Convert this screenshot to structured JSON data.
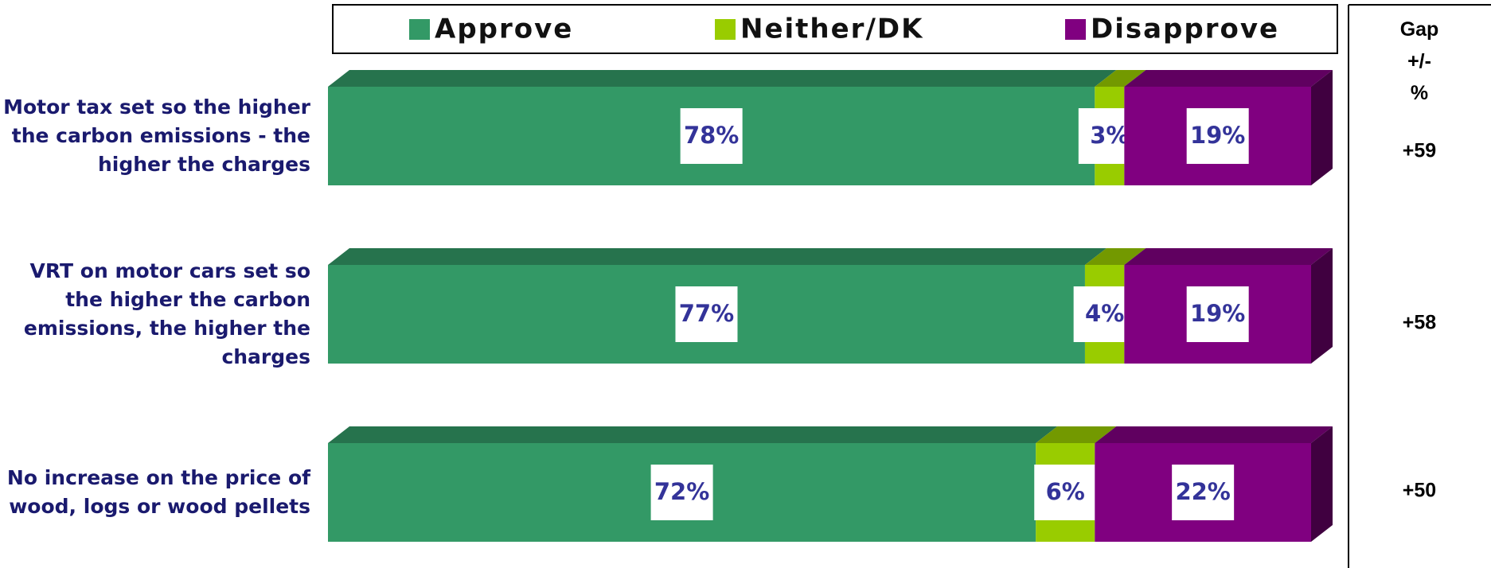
{
  "chart_data": {
    "type": "stacked-bar-3d",
    "orientation": "horizontal",
    "categories": [
      "Motor tax set so the higher the carbon emissions - the higher the charges",
      "VRT on motor cars set so the higher the carbon emissions, the higher the charges",
      "No increase on the price of wood, logs or wood pellets"
    ],
    "series": [
      {
        "name": "Approve",
        "color": "#339966",
        "values": [
          78,
          77,
          72
        ],
        "value_labels": [
          "78%",
          "77%",
          "72%"
        ]
      },
      {
        "name": "Neither/DK",
        "color": "#99cc00",
        "values": [
          3,
          4,
          6
        ],
        "value_labels": [
          "3%",
          "4%",
          "6%"
        ]
      },
      {
        "name": "Disapprove",
        "color": "#800080",
        "values": [
          19,
          19,
          22
        ],
        "value_labels": [
          "19%",
          "19%",
          "22%"
        ]
      }
    ],
    "xlim": [
      0,
      100
    ],
    "legend": "top",
    "gap": {
      "title": "Gap +/- %",
      "values": [
        59,
        58,
        50
      ],
      "value_labels": [
        "+59",
        "+58",
        "+50"
      ]
    }
  }
}
